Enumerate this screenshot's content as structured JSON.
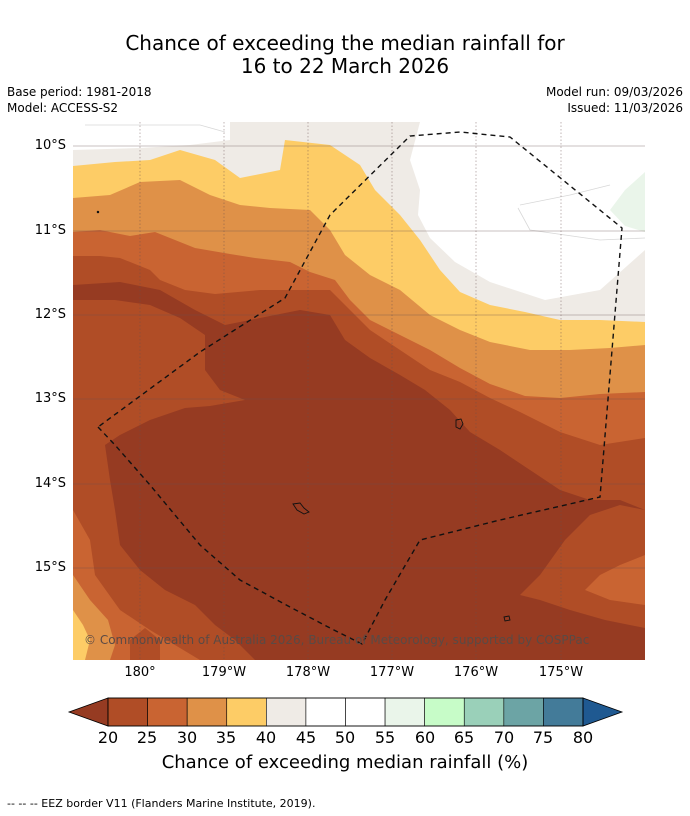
{
  "title": {
    "line1": "Chance of exceeding the median rainfall for",
    "line2": "16 to 22 March 2026"
  },
  "meta": {
    "base_period": "Base period: 1981-2018",
    "model": "Model: ACCESS-S2",
    "model_run": "Model run: 09/03/2026",
    "issued": "Issued: 11/03/2026"
  },
  "map": {
    "lat_labels": [
      "10°S",
      "11°S",
      "12°S",
      "13°S",
      "14°S",
      "15°S"
    ],
    "lon_labels": [
      "180°",
      "179°W",
      "178°W",
      "177°W",
      "176°W",
      "175°W"
    ],
    "copyright": "© Commonwealth of Australia 2026, Bureau of Meteorology, supported by COSPPac"
  },
  "colorbar": {
    "label": "Chance of exceeding median rainfall (%)",
    "ticks": [
      "20",
      "25",
      "30",
      "35",
      "40",
      "45",
      "50",
      "55",
      "60",
      "65",
      "70",
      "75",
      "80"
    ],
    "colors": [
      "#963b22",
      "#b04d26",
      "#c96432",
      "#df9148",
      "#fdcc66",
      "#efebe6",
      "#ffffff",
      "#ffffff",
      "#eaf5ea",
      "#c7fcc8",
      "#9ad0b9",
      "#6ca4a5",
      "#437b99",
      "#1f5991"
    ]
  },
  "footnote": "--  --  -- EEZ border V11 (Flanders Marine Institute, 2019)."
}
